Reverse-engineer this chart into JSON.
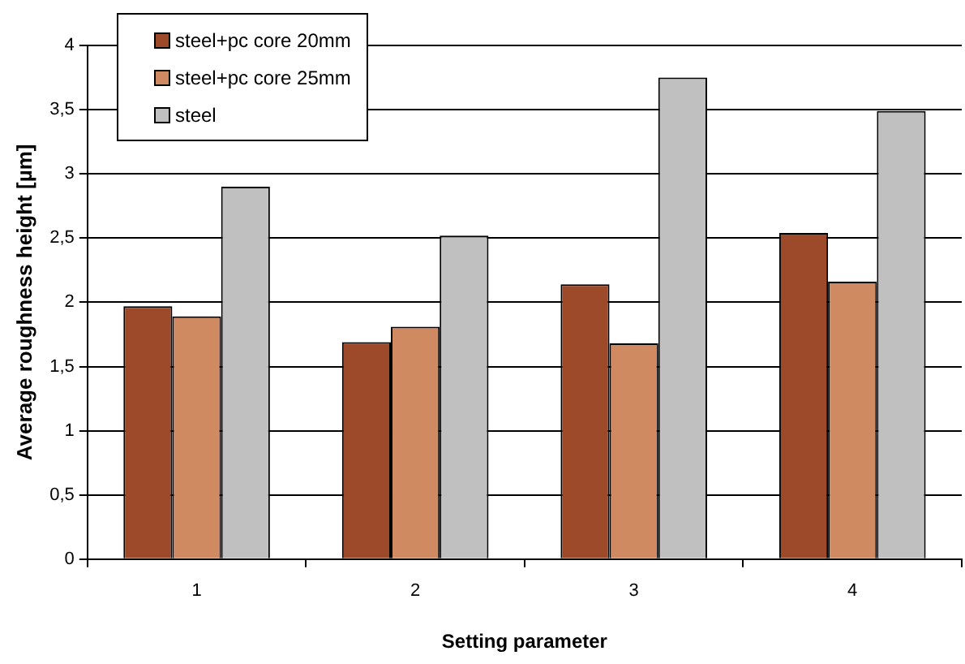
{
  "chart_data": {
    "type": "bar",
    "xlabel": "Setting parameter",
    "ylabel": "Average roughness height [µm]",
    "categories": [
      "1",
      "2",
      "3",
      "4"
    ],
    "series": [
      {
        "name": "steel+pc core 20mm",
        "color": "#9c4a2a",
        "values": [
          1.97,
          1.69,
          2.14,
          2.54
        ]
      },
      {
        "name": "steel+pc core 25mm",
        "color": "#d08a62",
        "values": [
          1.89,
          1.81,
          1.68,
          2.16
        ]
      },
      {
        "name": "steel",
        "color": "#c0c0c0",
        "values": [
          2.9,
          2.52,
          3.75,
          3.49
        ]
      }
    ],
    "ylim": [
      0,
      4
    ],
    "yticks": [
      0,
      {
        "value": 0.5,
        "label": "0,5"
      },
      1,
      {
        "value": 1.5,
        "label": "1,5"
      },
      2,
      {
        "value": 2.5,
        "label": "2,5"
      },
      3,
      {
        "value": 3.5,
        "label": "3,5"
      },
      4
    ],
    "grid": "y",
    "legend": "top left"
  }
}
